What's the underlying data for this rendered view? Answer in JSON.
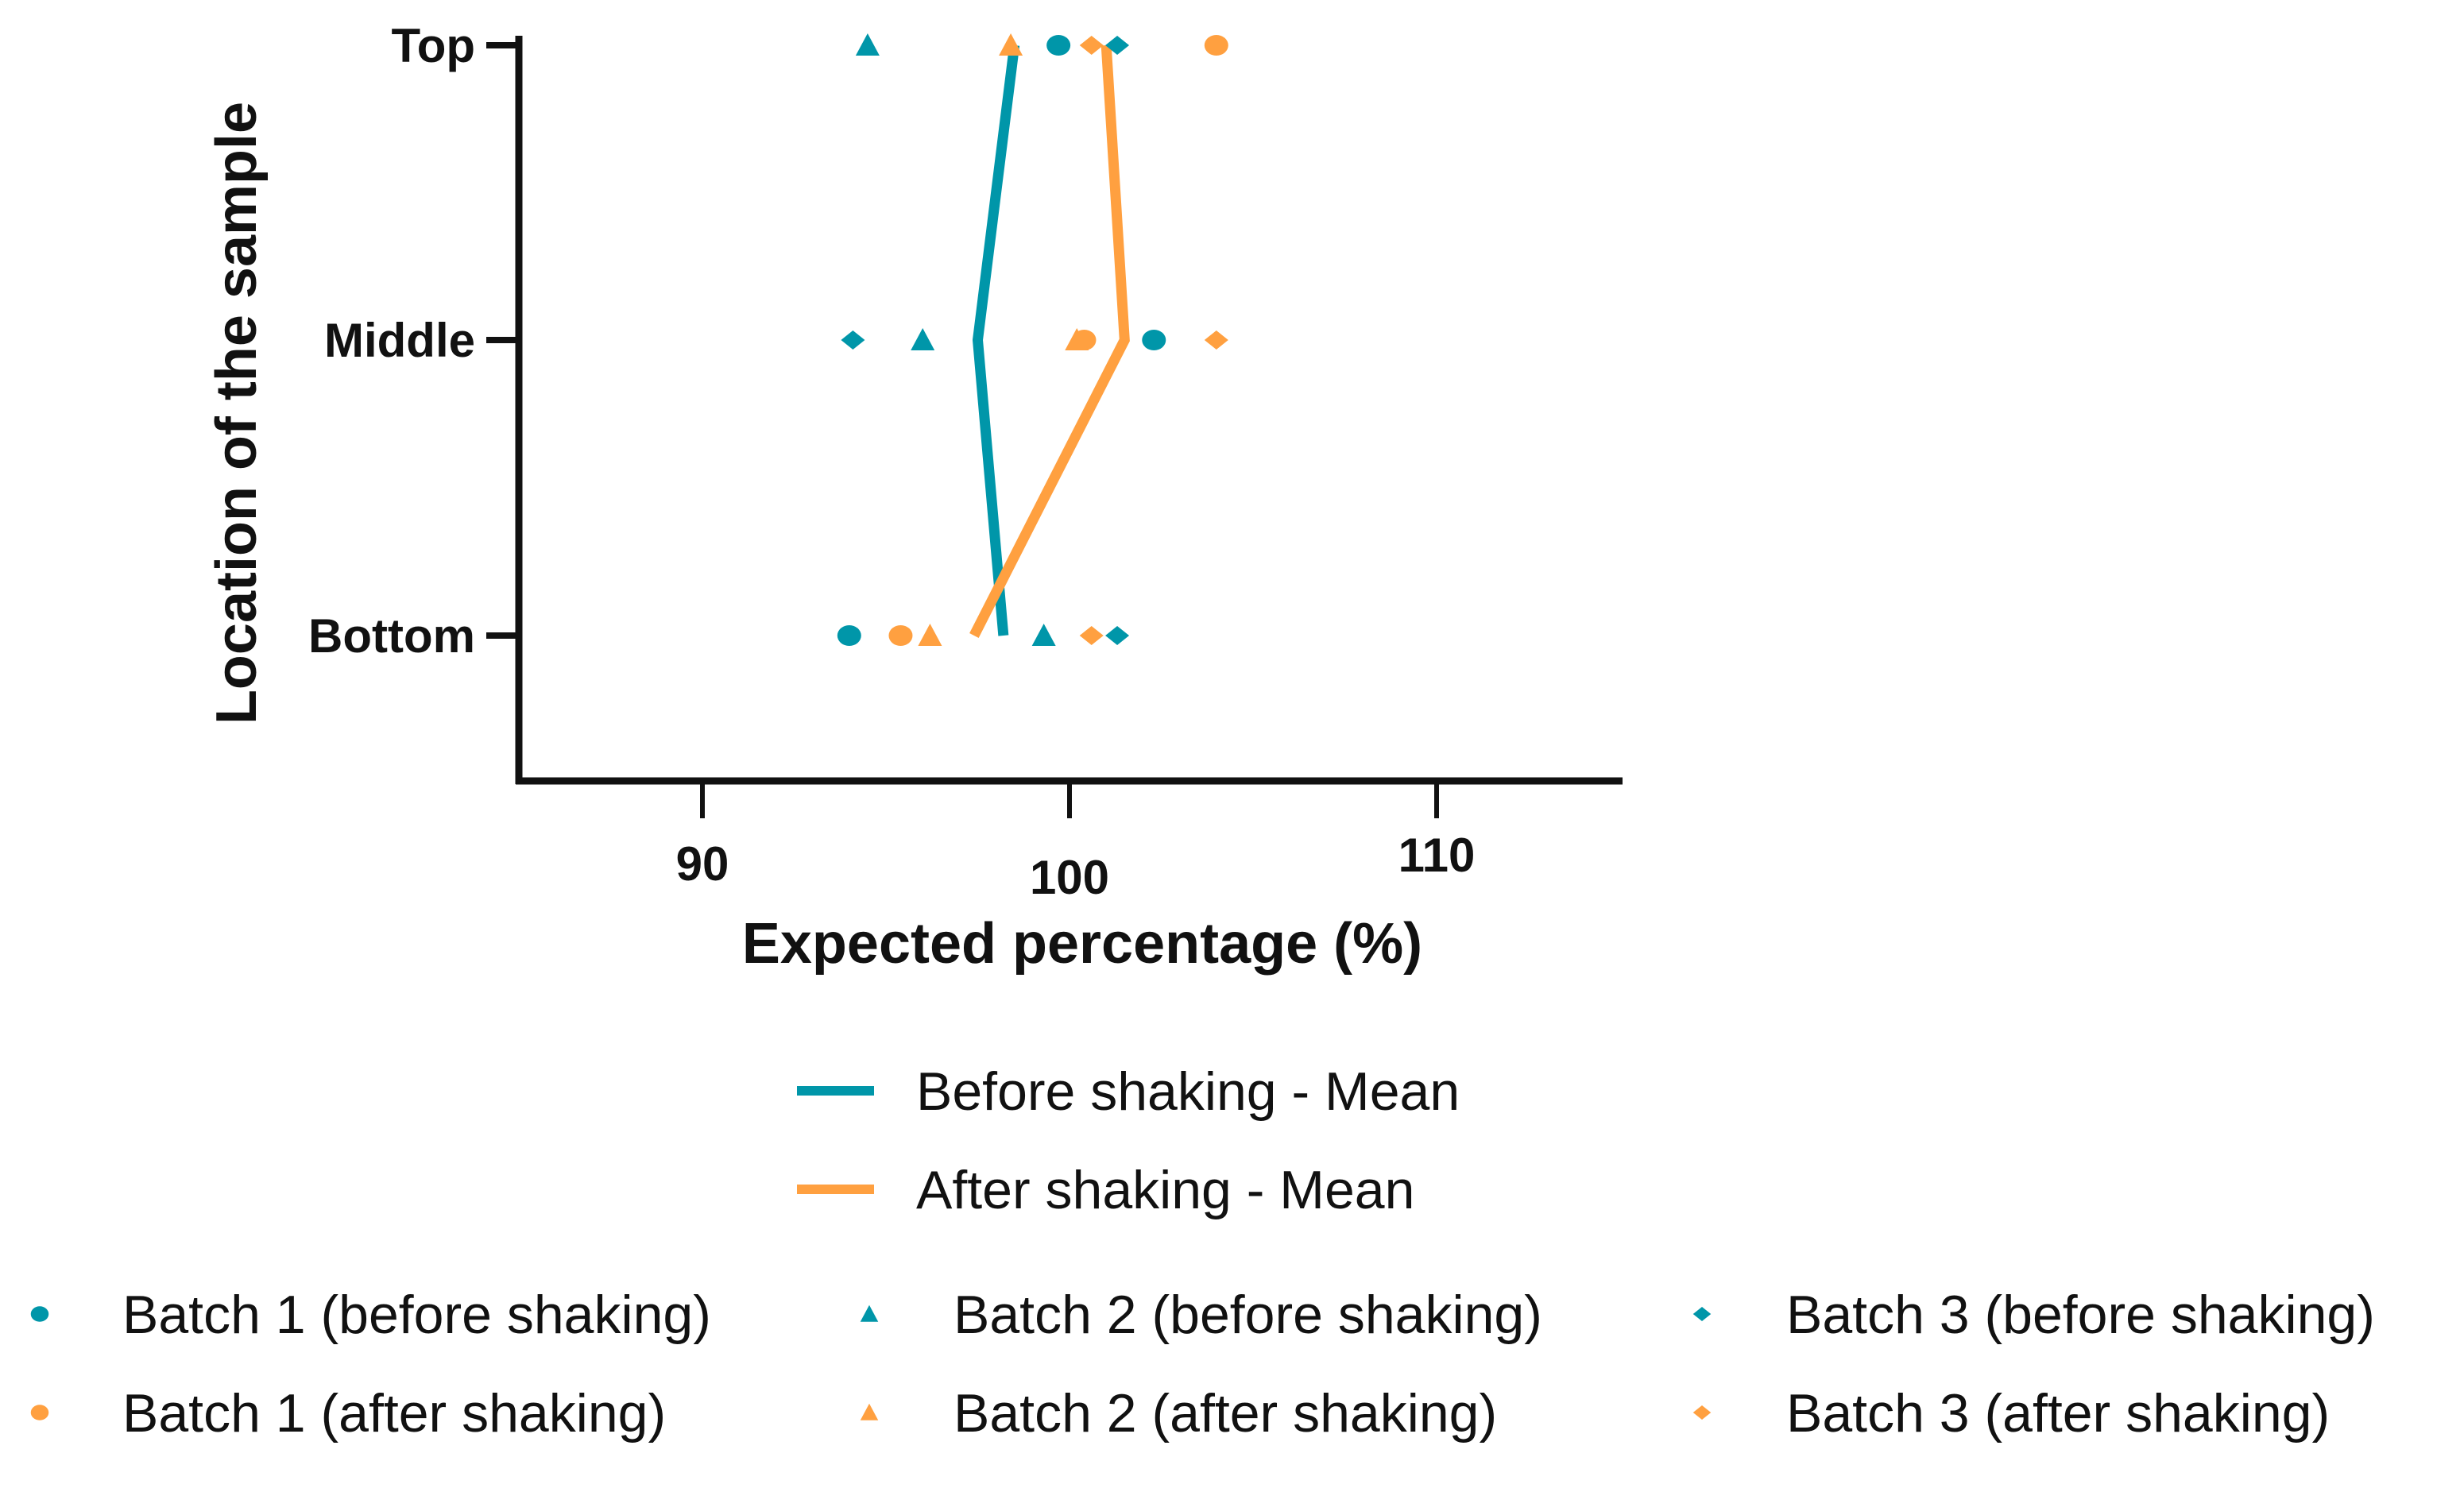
{
  "chart_data": {
    "type": "scatter",
    "title": "",
    "xlabel": "Expected percentage (%)",
    "ylabel": "Location of the sample",
    "xlim": [
      85,
      115
    ],
    "xticks": [
      90,
      100,
      110
    ],
    "xtick_labels": [
      "90",
      "100",
      "110"
    ],
    "categories": [
      "Top",
      "Middle",
      "Bottom"
    ],
    "grid": false,
    "colors": {
      "before": "#0096a9",
      "after": "#ffa040",
      "axis": "#111111"
    },
    "lines": [
      {
        "name": "Before shaking - Mean",
        "color_key": "before",
        "values": [
          98.5,
          97.5,
          98.2
        ]
      },
      {
        "name": "After shaking - Mean",
        "color_key": "after",
        "values": [
          101.0,
          101.5,
          97.4
        ]
      }
    ],
    "series": [
      {
        "name": "Batch 1 (before shaking)",
        "marker": "circle",
        "color_key": "before",
        "values": [
          99.7,
          102.3,
          94.0
        ]
      },
      {
        "name": "Batch 2 (before shaking)",
        "marker": "triangle",
        "color_key": "before",
        "values": [
          94.5,
          96.0,
          99.3
        ]
      },
      {
        "name": "Batch 3 (before shaking)",
        "marker": "diamond",
        "color_key": "before",
        "values": [
          101.3,
          94.1,
          101.3
        ]
      },
      {
        "name": "Batch 1 (after shaking)",
        "marker": "circle",
        "color_key": "after",
        "values": [
          104.0,
          100.4,
          95.4
        ]
      },
      {
        "name": "Batch 2 (after shaking)",
        "marker": "triangle",
        "color_key": "after",
        "values": [
          98.4,
          100.2,
          96.2
        ]
      },
      {
        "name": "Batch 3 (after shaking)",
        "marker": "diamond",
        "color_key": "after",
        "values": [
          100.6,
          104.0,
          100.6
        ]
      }
    ],
    "legend_placement": "bottom"
  }
}
